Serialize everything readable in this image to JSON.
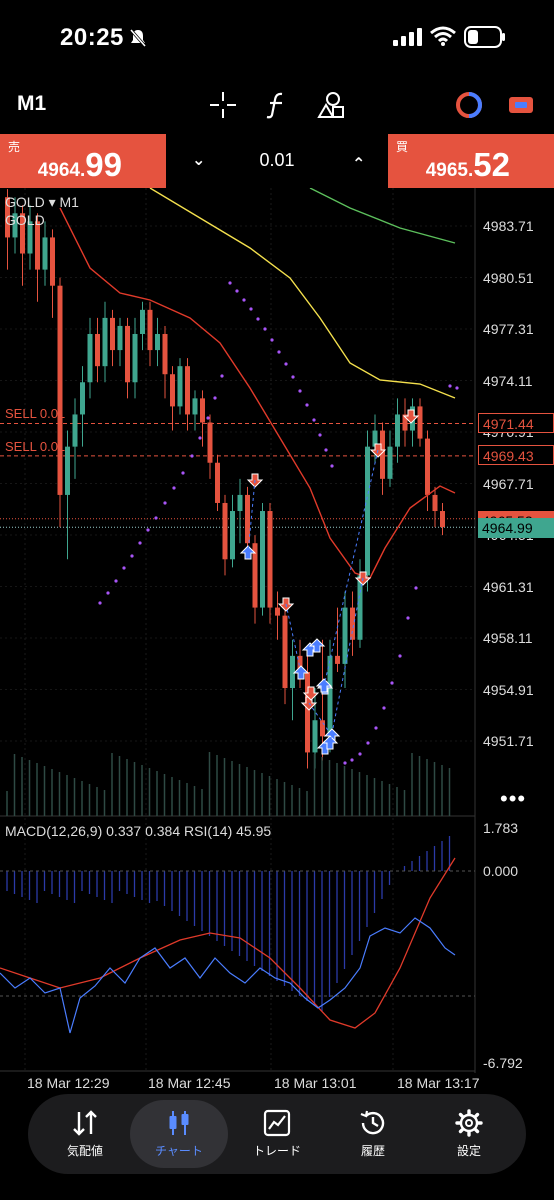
{
  "status": {
    "time": "20:25"
  },
  "toolbar": {
    "timeframe": "M1"
  },
  "trade": {
    "sell_label": "売",
    "sell_small": "4964.",
    "sell_big": "99",
    "buy_label": "買",
    "buy_small": "4965.",
    "buy_big": "52",
    "lot": "0.01"
  },
  "chart": {
    "symbol": "GOLD",
    "symbol_tf": "GOLD ▾ M1",
    "price_levels": [
      "4983.71",
      "4980.51",
      "4977.31",
      "4974.11",
      "4970.91",
      "4967.71",
      "4964.51",
      "4961.31",
      "4958.11",
      "4954.91",
      "4951.71"
    ],
    "order_lines": [
      {
        "label": "SELL 0.01",
        "price": "4971.44"
      },
      {
        "label": "SELL 0.01",
        "price": "4969.43"
      }
    ],
    "ask_badge": "4965.52",
    "bid_badge": "4964.99",
    "macd_label": "MACD(12,26,9) 0.337 0.384 RSI(14) 45.95",
    "macd_levels": [
      "1.783",
      "0.000",
      "-6.792"
    ],
    "time_labels": [
      "18 Mar 12:29",
      "18 Mar 12:45",
      "18 Mar 13:01",
      "18 Mar 13:17"
    ],
    "colors": {
      "bull": "#3fa68f",
      "bear": "#e5533f",
      "ma_fast": "#e03a2a",
      "ma_mid": "#f4e04d",
      "ma_slow": "#5cbf5c",
      "sar": "#a855f7",
      "macd_signal": "#4a7dff"
    }
  },
  "nav": {
    "items": [
      {
        "label": "気配値",
        "icon": "quotes-icon"
      },
      {
        "label": "チャート",
        "icon": "chart-icon"
      },
      {
        "label": "トレード",
        "icon": "trade-icon"
      },
      {
        "label": "履歴",
        "icon": "history-icon"
      },
      {
        "label": "設定",
        "icon": "settings-icon"
      }
    ]
  }
}
